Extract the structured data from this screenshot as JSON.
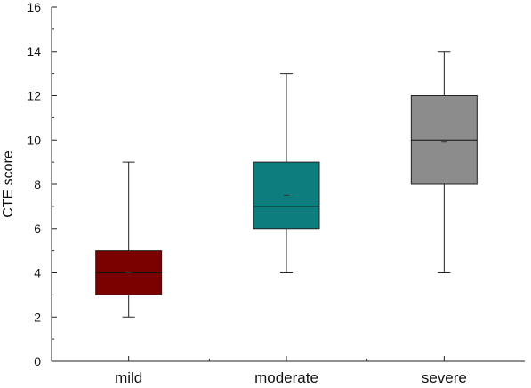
{
  "chart_data": {
    "type": "box",
    "ylabel": "CTE score",
    "xlabel": "",
    "ylim": [
      0,
      16
    ],
    "yticks": [
      0,
      2,
      4,
      6,
      8,
      10,
      12,
      14,
      16
    ],
    "grid": false,
    "categories": [
      "mild",
      "moderate",
      "severe"
    ],
    "boxes": [
      {
        "category": "mild",
        "whisker_low": 2,
        "q1": 3,
        "median": 4,
        "q3": 5,
        "whisker_high": 9,
        "mean": 4,
        "color": "#7b0000"
      },
      {
        "category": "moderate",
        "whisker_low": 4,
        "q1": 6,
        "median": 7,
        "q3": 9,
        "whisker_high": 13,
        "mean": 7.5,
        "color": "#0e7d7e"
      },
      {
        "category": "severe",
        "whisker_low": 4,
        "q1": 8,
        "median": 10,
        "q3": 12,
        "whisker_high": 14,
        "mean": 9.9,
        "color": "#8c8c8c"
      }
    ]
  }
}
